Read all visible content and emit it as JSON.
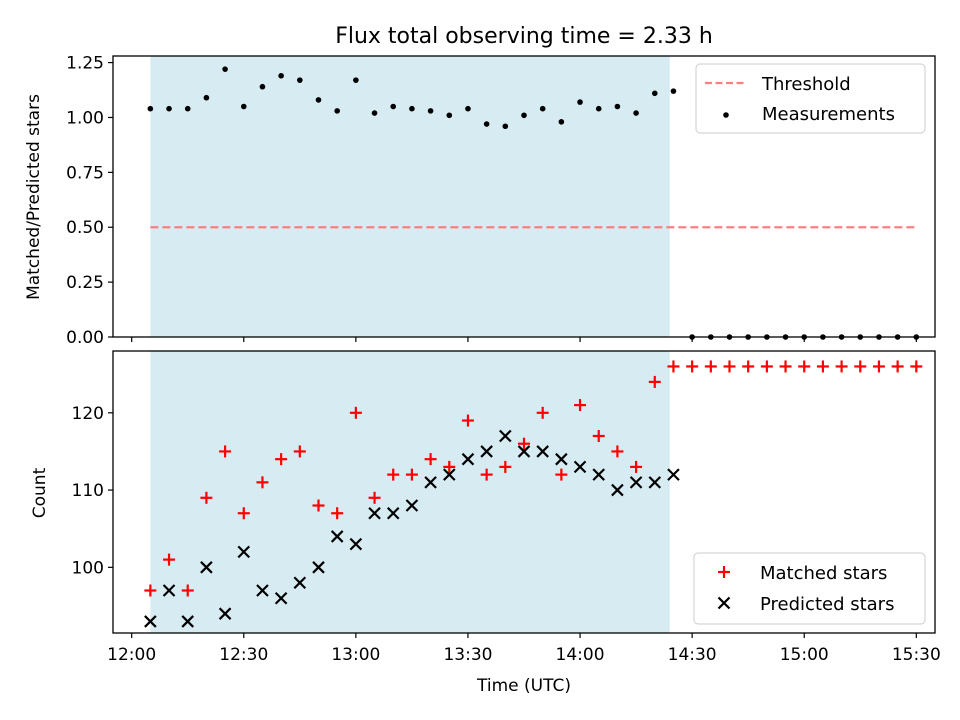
{
  "title": "Flux total observing time = 2.33 h",
  "colors": {
    "shade": "#add8e6",
    "threshold": "#ff7f7f",
    "measurement": "#000000",
    "matched": "#ff0000",
    "predicted": "#000000"
  },
  "chart_data": [
    {
      "type": "scatter",
      "panel": "top",
      "ylabel": "Matched/Predicted stars",
      "xlabel": "",
      "ylim": [
        0,
        1.28
      ],
      "yticks": [
        0.0,
        0.25,
        0.5,
        0.75,
        1.0,
        1.25
      ],
      "ytick_labels": [
        "0.00",
        "0.25",
        "0.50",
        "0.75",
        "1.00",
        "1.25"
      ],
      "shaded_span": {
        "start": "12:05",
        "end": "14:24"
      },
      "grid": false,
      "legend_position": "top-right",
      "threshold": {
        "name": "Threshold",
        "value": 0.5,
        "x_start": "12:05",
        "x_end": "15:30",
        "style": "dashed"
      },
      "series": [
        {
          "name": "Measurements",
          "x": [
            "12:05",
            "12:10",
            "12:15",
            "12:20",
            "12:25",
            "12:30",
            "12:35",
            "12:40",
            "12:45",
            "12:50",
            "12:55",
            "13:00",
            "13:05",
            "13:10",
            "13:15",
            "13:20",
            "13:25",
            "13:30",
            "13:35",
            "13:40",
            "13:45",
            "13:50",
            "13:55",
            "14:00",
            "14:05",
            "14:10",
            "14:15",
            "14:20",
            "14:25",
            "14:30",
            "14:35",
            "14:40",
            "14:45",
            "14:50",
            "14:55",
            "15:00",
            "15:05",
            "15:10",
            "15:15",
            "15:20",
            "15:25",
            "15:30"
          ],
          "y": [
            1.04,
            1.04,
            1.04,
            1.09,
            1.22,
            1.05,
            1.14,
            1.19,
            1.17,
            1.08,
            1.03,
            1.17,
            1.02,
            1.05,
            1.04,
            1.03,
            1.01,
            1.04,
            0.97,
            0.96,
            1.01,
            1.04,
            0.98,
            1.07,
            1.04,
            1.05,
            1.02,
            1.11,
            1.12,
            0,
            0,
            0,
            0,
            0,
            0,
            0,
            0,
            0,
            0,
            0,
            0,
            0
          ]
        }
      ]
    },
    {
      "type": "scatter",
      "panel": "bottom",
      "xlabel": "Time (UTC)",
      "ylabel": "Count",
      "ylim": [
        91.5,
        128
      ],
      "yticks": [
        100,
        110,
        120
      ],
      "ytick_labels": [
        "100",
        "110",
        "120"
      ],
      "xlim": [
        "11:55",
        "15:35"
      ],
      "xticks": [
        "12:00",
        "12:30",
        "13:00",
        "13:30",
        "14:00",
        "14:30",
        "15:00",
        "15:30"
      ],
      "shaded_span": {
        "start": "12:05",
        "end": "14:24"
      },
      "grid": false,
      "legend_position": "bottom-right",
      "series": [
        {
          "name": "Matched stars",
          "marker": "plus",
          "x": [
            "12:05",
            "12:10",
            "12:15",
            "12:20",
            "12:25",
            "12:30",
            "12:35",
            "12:40",
            "12:45",
            "12:50",
            "12:55",
            "13:00",
            "13:05",
            "13:10",
            "13:15",
            "13:20",
            "13:25",
            "13:30",
            "13:35",
            "13:40",
            "13:45",
            "13:50",
            "13:55",
            "14:00",
            "14:05",
            "14:10",
            "14:15",
            "14:20",
            "14:25",
            "14:30",
            "14:35",
            "14:40",
            "14:45",
            "14:50",
            "14:55",
            "15:00",
            "15:05",
            "15:10",
            "15:15",
            "15:20",
            "15:25",
            "15:30"
          ],
          "y": [
            97,
            101,
            97,
            109,
            115,
            107,
            111,
            114,
            115,
            108,
            107,
            120,
            109,
            112,
            112,
            114,
            113,
            119,
            112,
            113,
            116,
            120,
            112,
            121,
            117,
            115,
            113,
            124,
            126,
            126,
            126,
            126,
            126,
            126,
            126,
            126,
            126,
            126,
            126,
            126,
            126,
            126
          ]
        },
        {
          "name": "Predicted stars",
          "marker": "x",
          "x": [
            "12:05",
            "12:10",
            "12:15",
            "12:20",
            "12:25",
            "12:30",
            "12:35",
            "12:40",
            "12:45",
            "12:50",
            "12:55",
            "13:00",
            "13:05",
            "13:10",
            "13:15",
            "13:20",
            "13:25",
            "13:30",
            "13:35",
            "13:40",
            "13:45",
            "13:50",
            "13:55",
            "14:00",
            "14:05",
            "14:10",
            "14:15",
            "14:20",
            "14:25"
          ],
          "y": [
            93,
            97,
            93,
            100,
            94,
            102,
            97,
            96,
            98,
            100,
            104,
            103,
            107,
            107,
            108,
            111,
            112,
            114,
            115,
            117,
            115,
            115,
            114,
            113,
            112,
            110,
            111,
            111,
            112
          ]
        }
      ]
    }
  ]
}
